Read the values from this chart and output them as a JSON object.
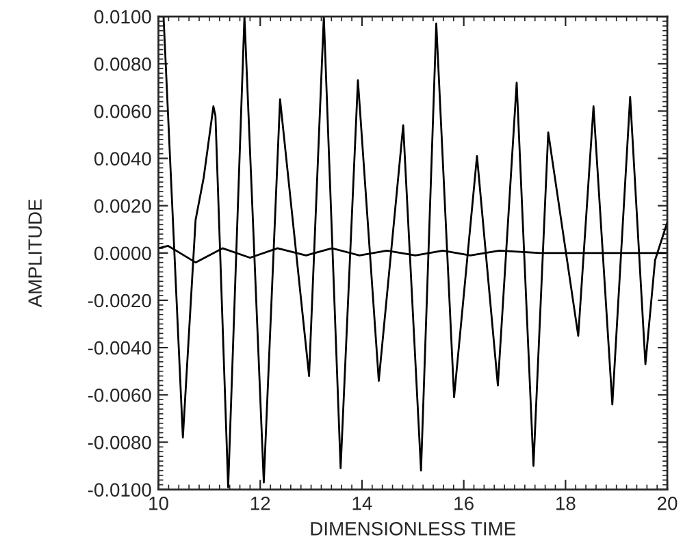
{
  "chart_data": {
    "type": "line",
    "xlabel": "DIMENSIONLESS TIME",
    "ylabel": "AMPLITUDE",
    "xlim": [
      10,
      20
    ],
    "xticks": [
      10,
      12,
      14,
      16,
      18,
      20
    ],
    "ylim": [
      -0.01,
      0.01
    ],
    "yticks": [
      {
        "value": -0.01,
        "label": "-0.0100"
      },
      {
        "value": -0.008,
        "label": "-0.0080"
      },
      {
        "value": -0.006,
        "label": "-0.0060"
      },
      {
        "value": -0.004,
        "label": "-0.0040"
      },
      {
        "value": -0.002,
        "label": "-0.0020"
      },
      {
        "value": 0,
        "label": "0.0000"
      },
      {
        "value": 0.002,
        "label": "0.0020"
      },
      {
        "value": 0.004,
        "label": "0.0040"
      },
      {
        "value": 0.006,
        "label": "0.0060"
      },
      {
        "value": 0.008,
        "label": "0.0080"
      },
      {
        "value": 0.01,
        "label": "0.0100"
      }
    ],
    "grid": false,
    "legend": false,
    "marker": "none",
    "line_style": "solid",
    "series": [
      {
        "color": "#000000",
        "x": [
          10.1,
          10.48,
          10.73,
          10.89,
          11.08,
          11.12,
          11.37,
          11.69,
          12.07,
          12.39,
          12.96,
          13.25,
          13.58,
          13.92,
          14.33,
          14.81,
          15.16,
          15.46,
          15.81,
          16.26,
          16.67,
          17.04,
          17.37,
          17.66,
          18.25,
          18.55,
          18.92,
          19.27,
          19.57,
          19.76,
          20.0
        ],
        "values": [
          0.01,
          -0.0078,
          0.0014,
          0.0032,
          0.0062,
          0.0058,
          -0.0099,
          0.01,
          -0.0097,
          0.0065,
          -0.0052,
          0.01,
          -0.0091,
          0.0073,
          -0.0054,
          0.0054,
          -0.0092,
          0.0097,
          -0.0061,
          0.0041,
          -0.0056,
          0.0072,
          -0.009,
          0.0051,
          -0.0035,
          0.0062,
          -0.0064,
          0.0066,
          -0.0047,
          -0.0003,
          0.0013
        ]
      },
      {
        "color": "#000000",
        "x": [
          10.0,
          10.19,
          10.73,
          11.26,
          11.8,
          12.34,
          12.9,
          13.41,
          13.95,
          14.49,
          15.05,
          15.59,
          16.13,
          16.7,
          17.5,
          20.0
        ],
        "values": [
          0.0002,
          0.0003,
          -0.0004,
          0.0002,
          -0.0002,
          0.0002,
          -0.0001,
          0.0002,
          -0.0001,
          0.0001,
          -0.0001,
          0.0001,
          -0.0001,
          0.0001,
          0.0,
          0.0
        ]
      }
    ]
  }
}
